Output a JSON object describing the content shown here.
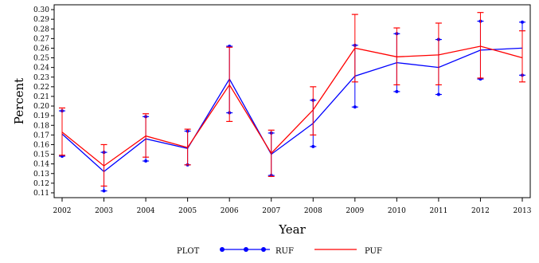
{
  "chart_data": {
    "type": "line",
    "xlabel": "Year",
    "ylabel": "Percent",
    "x": [
      2002,
      2003,
      2004,
      2005,
      2006,
      2007,
      2008,
      2009,
      2010,
      2011,
      2012,
      2013
    ],
    "ylim": [
      0.105,
      0.305
    ],
    "y_ticks": [
      0.11,
      0.12,
      0.13,
      0.14,
      0.15,
      0.16,
      0.17,
      0.18,
      0.19,
      0.2,
      0.21,
      0.22,
      0.23,
      0.24,
      0.25,
      0.26,
      0.27,
      0.28,
      0.29,
      0.3
    ],
    "y_tick_labels": [
      "0.11",
      "0.12",
      "0.13",
      "0.14",
      "0.15",
      "0.16",
      "0.17",
      "0.18",
      "0.19",
      "0.20",
      "0.21",
      "0.22",
      "0.23",
      "0.24",
      "0.25",
      "0.26",
      "0.27",
      "0.28",
      "0.29",
      "0.30"
    ],
    "grid": false,
    "legend": {
      "title": "PLOT",
      "placement": "bottom"
    },
    "series": [
      {
        "name": "RUF",
        "color": "#0000ff",
        "marker": "dot",
        "values": [
          0.171,
          0.132,
          0.166,
          0.156,
          0.228,
          0.15,
          0.182,
          0.231,
          0.245,
          0.24,
          0.258,
          0.26
        ],
        "lower": [
          0.148,
          0.112,
          0.143,
          0.139,
          0.193,
          0.128,
          0.158,
          0.199,
          0.215,
          0.212,
          0.228,
          0.232
        ],
        "upper": [
          0.195,
          0.152,
          0.189,
          0.174,
          0.262,
          0.172,
          0.206,
          0.263,
          0.275,
          0.269,
          0.288,
          0.287
        ]
      },
      {
        "name": "PUF",
        "color": "#ff0000",
        "marker": "none",
        "values": [
          0.173,
          0.138,
          0.169,
          0.157,
          0.222,
          0.151,
          0.196,
          0.26,
          0.251,
          0.253,
          0.262,
          0.25
        ],
        "lower": [
          0.149,
          0.117,
          0.147,
          0.139,
          0.184,
          0.127,
          0.17,
          0.225,
          0.222,
          0.222,
          0.229,
          0.225
        ],
        "upper": [
          0.198,
          0.16,
          0.192,
          0.176,
          0.261,
          0.175,
          0.22,
          0.295,
          0.281,
          0.286,
          0.297,
          0.278
        ]
      }
    ]
  }
}
